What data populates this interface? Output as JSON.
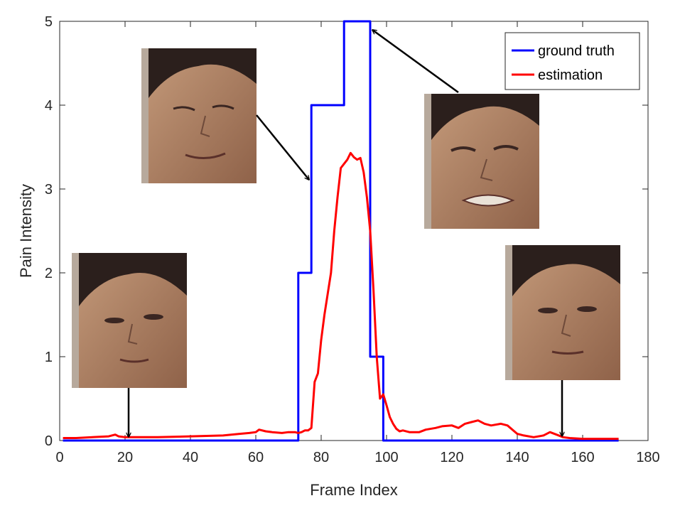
{
  "chart_data": {
    "type": "line",
    "title": "",
    "xlabel": "Frame Index",
    "ylabel": "Pain Intensity",
    "xlim": [
      0,
      180
    ],
    "ylim": [
      0,
      5
    ],
    "xticks": [
      0,
      20,
      40,
      60,
      80,
      100,
      120,
      140,
      160,
      180
    ],
    "yticks": [
      0,
      1,
      2,
      3,
      4,
      5
    ],
    "grid": false,
    "legend_position": "top-right",
    "series": [
      {
        "name": "ground truth",
        "color": "#0000FF",
        "x": [
          1,
          72,
          72,
          73,
          73,
          76,
          76,
          77,
          77,
          86,
          86,
          87,
          87,
          94,
          94,
          95,
          95,
          98,
          98,
          99,
          99,
          102,
          102,
          103,
          103,
          171
        ],
        "y": [
          0,
          0,
          0,
          0,
          2,
          2,
          2,
          2,
          4,
          4,
          4,
          4,
          5,
          5,
          5,
          5,
          1,
          1,
          1,
          1,
          0,
          0,
          0,
          0,
          0,
          0
        ]
      },
      {
        "name": "estimation",
        "color": "#FF0000",
        "x": [
          1,
          5,
          10,
          15,
          17,
          18,
          20,
          25,
          30,
          40,
          50,
          55,
          58,
          60,
          61,
          63,
          65,
          68,
          70,
          72,
          73,
          74,
          75,
          76,
          77,
          78,
          79,
          80,
          81,
          82,
          83,
          84,
          85,
          86,
          87,
          88,
          89,
          90,
          91,
          92,
          93,
          94,
          95,
          96,
          97,
          98,
          99,
          100,
          101,
          102,
          103,
          104,
          105,
          107,
          110,
          112,
          115,
          117,
          120,
          122,
          124,
          126,
          128,
          130,
          132,
          135,
          137,
          140,
          142,
          145,
          148,
          150,
          152,
          154,
          156,
          160,
          165,
          171
        ],
        "y": [
          0.03,
          0.03,
          0.04,
          0.05,
          0.07,
          0.05,
          0.04,
          0.04,
          0.04,
          0.05,
          0.06,
          0.08,
          0.09,
          0.1,
          0.13,
          0.11,
          0.1,
          0.09,
          0.1,
          0.1,
          0.09,
          0.1,
          0.12,
          0.12,
          0.15,
          0.7,
          0.8,
          1.2,
          1.5,
          1.75,
          2.0,
          2.5,
          2.9,
          3.25,
          3.3,
          3.35,
          3.43,
          3.38,
          3.35,
          3.37,
          3.2,
          2.9,
          2.5,
          1.8,
          1.0,
          0.5,
          0.55,
          0.42,
          0.28,
          0.2,
          0.14,
          0.11,
          0.12,
          0.1,
          0.1,
          0.13,
          0.15,
          0.17,
          0.18,
          0.15,
          0.2,
          0.22,
          0.24,
          0.2,
          0.18,
          0.2,
          0.18,
          0.08,
          0.06,
          0.04,
          0.06,
          0.1,
          0.07,
          0.04,
          0.03,
          0.02,
          0.02,
          0.02
        ]
      }
    ],
    "annotations": [
      {
        "name": "face-frame-20",
        "arrow_to": [
          20,
          0.03
        ]
      },
      {
        "name": "face-frame-76",
        "arrow_to": [
          76,
          3.1
        ]
      },
      {
        "name": "face-frame-94",
        "arrow_to": [
          94,
          4.9
        ]
      },
      {
        "name": "face-frame-153",
        "arrow_to": [
          153,
          0.04
        ]
      }
    ]
  }
}
